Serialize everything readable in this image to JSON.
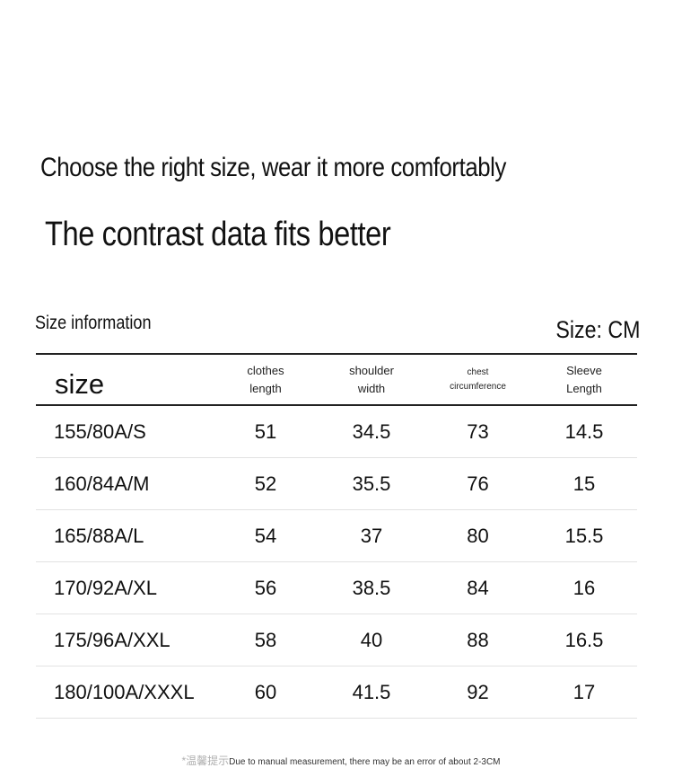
{
  "headline": "Choose the right size, wear it more comfortably",
  "subheadline": "The contrast data fits better",
  "info_label": "Size information",
  "unit_label": "Size: CM",
  "table": {
    "headers": [
      "size",
      "clothes\nlength",
      "shoulder\nwidth",
      "chest\ncircumference",
      "Sleeve\nLength"
    ],
    "rows": [
      [
        "155/80A/S",
        "51",
        "34.5",
        "73",
        "14.5"
      ],
      [
        "160/84A/M",
        "52",
        "35.5",
        "76",
        "15"
      ],
      [
        "165/88A/L",
        "54",
        "37",
        "80",
        "15.5"
      ],
      [
        "170/92A/XL",
        "56",
        "38.5",
        "84",
        "16"
      ],
      [
        "175/96A/XXL",
        "58",
        "40",
        "88",
        "16.5"
      ],
      [
        "180/100A/XXXL",
        "60",
        "41.5",
        "92",
        "17"
      ]
    ]
  },
  "footnote": {
    "tip": "*温馨提示",
    "text": "Due to manual measurement, there may be an error of about 2-3CM"
  }
}
